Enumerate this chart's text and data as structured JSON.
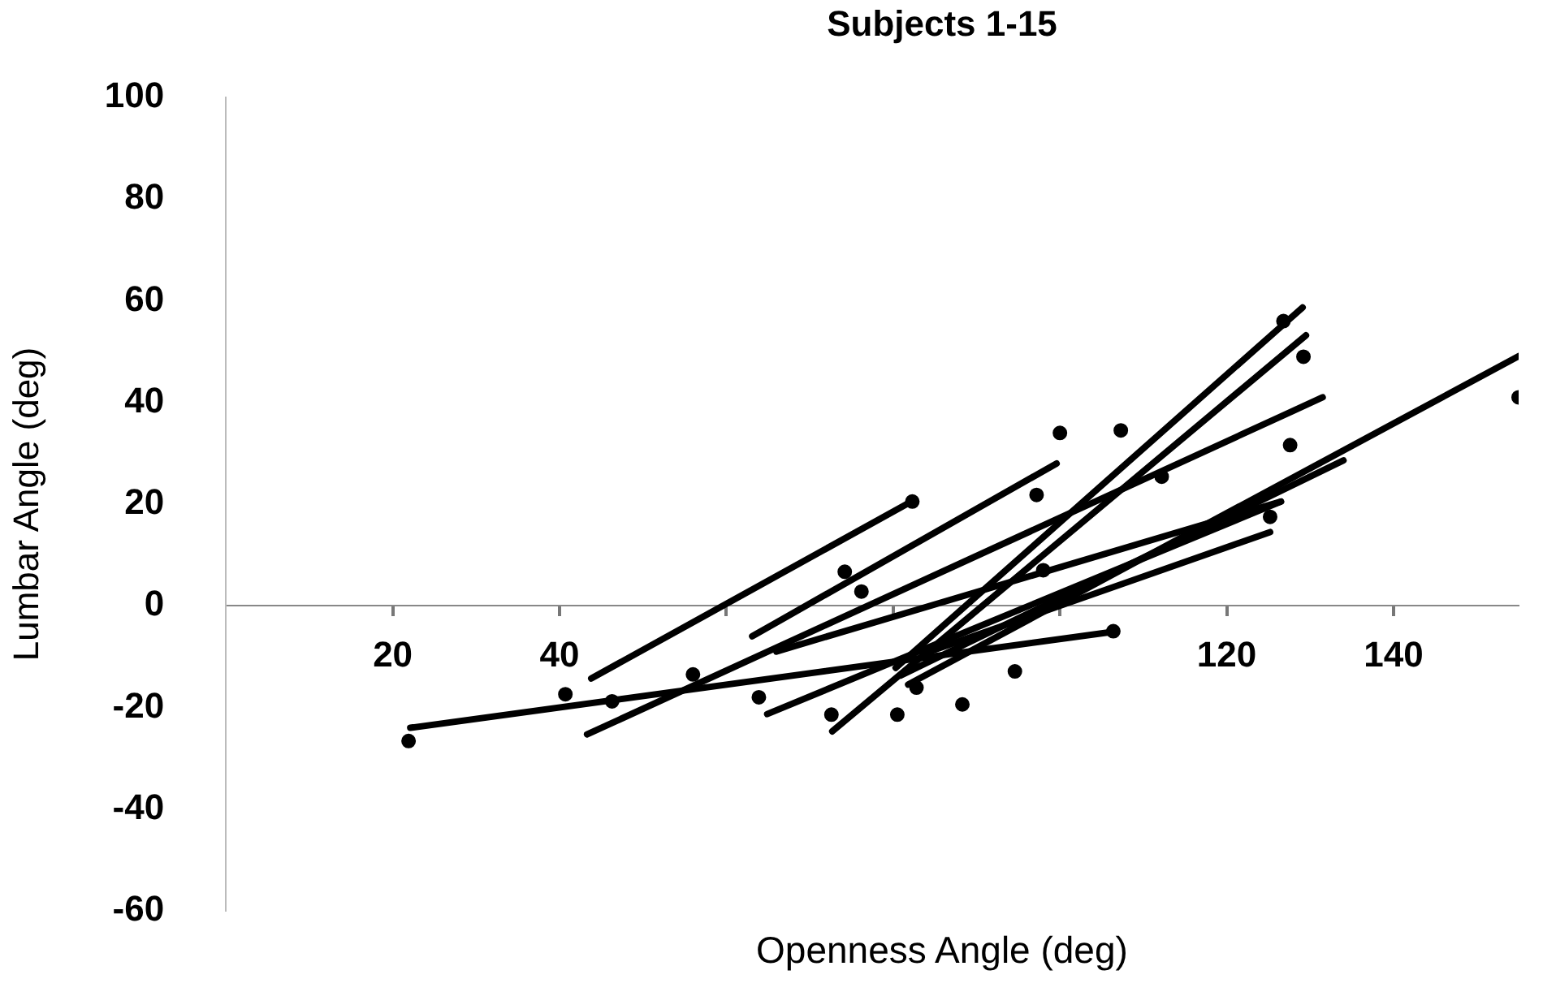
{
  "chart_data": {
    "type": "line",
    "title": "Subjects 1-15",
    "xlabel": "Openness Angle (deg)",
    "ylabel": "Lumbar Angle (deg)",
    "xlim": [
      0,
      155
    ],
    "xticks": [
      20,
      40,
      {
        "value": 60,
        "label": null
      },
      {
        "value": 80,
        "label": null
      },
      {
        "value": 100,
        "label": null
      },
      120,
      140
    ],
    "ylim": [
      -60,
      100
    ],
    "yticks": [
      -60,
      -40,
      -20,
      0,
      20,
      40,
      60,
      80,
      100
    ],
    "grid": false,
    "legend": false,
    "marker": "none",
    "line_style": "solid",
    "series": [
      {
        "type": "scatter",
        "marker": "circle",
        "color": "#000000",
        "x": [
          21.9,
          40.7,
          46.3,
          56.0,
          63.9,
          76.2,
          74.2,
          72.6,
          80.5,
          82.8,
          88.3,
          94.6,
          100,
          107.3,
          97.2,
          98,
          127.6,
          129.2,
          126.8,
          155,
          125.2,
          112.2,
          82.3,
          106.4
        ],
        "values": [
          -26.6,
          -17.4,
          -18.8,
          -13.5,
          -18,
          2.8,
          6.7,
          -21.4,
          -21.4,
          -16.1,
          -19.4,
          -12.9,
          34,
          34.5,
          21.8,
          7,
          31.6,
          49,
          56,
          41,
          17.5,
          25.4,
          20.5,
          -5
        ]
      },
      {
        "color": "#000000",
        "x": [
          22.1,
          106.4
        ],
        "values": [
          -24,
          -5.1
        ]
      },
      {
        "color": "#000000",
        "x": [
          43.8,
          82.2
        ],
        "values": [
          -14.3,
          20.5
        ]
      },
      {
        "color": "#000000",
        "x": [
          43.3,
          131.5
        ],
        "values": [
          -25.3,
          41
        ]
      },
      {
        "color": "#000000",
        "x": [
          63.1,
          99.6
        ],
        "values": [
          -6,
          28
        ]
      },
      {
        "color": "#000000",
        "x": [
          64.9,
          126.5
        ],
        "values": [
          -21.3,
          20.5
        ]
      },
      {
        "color": "#000000",
        "x": [
          72.7,
          129.5
        ],
        "values": [
          -24.7,
          53.2
        ]
      },
      {
        "color": "#000000",
        "x": [
          80.3,
          129.1
        ],
        "values": [
          -12.2,
          58.7
        ]
      },
      {
        "color": "#000000",
        "x": [
          81.8,
          155
        ],
        "values": [
          -15.5,
          49.1
        ]
      },
      {
        "color": "#000000",
        "x": [
          80.9,
          134
        ],
        "values": [
          -13.7,
          28.6
        ]
      },
      {
        "color": "#000000",
        "x": [
          84.2,
          125.2
        ],
        "values": [
          -9.1,
          14.5
        ]
      },
      {
        "color": "#000000",
        "x": [
          66,
          126.5
        ],
        "values": [
          -9,
          20.5
        ]
      }
    ]
  }
}
